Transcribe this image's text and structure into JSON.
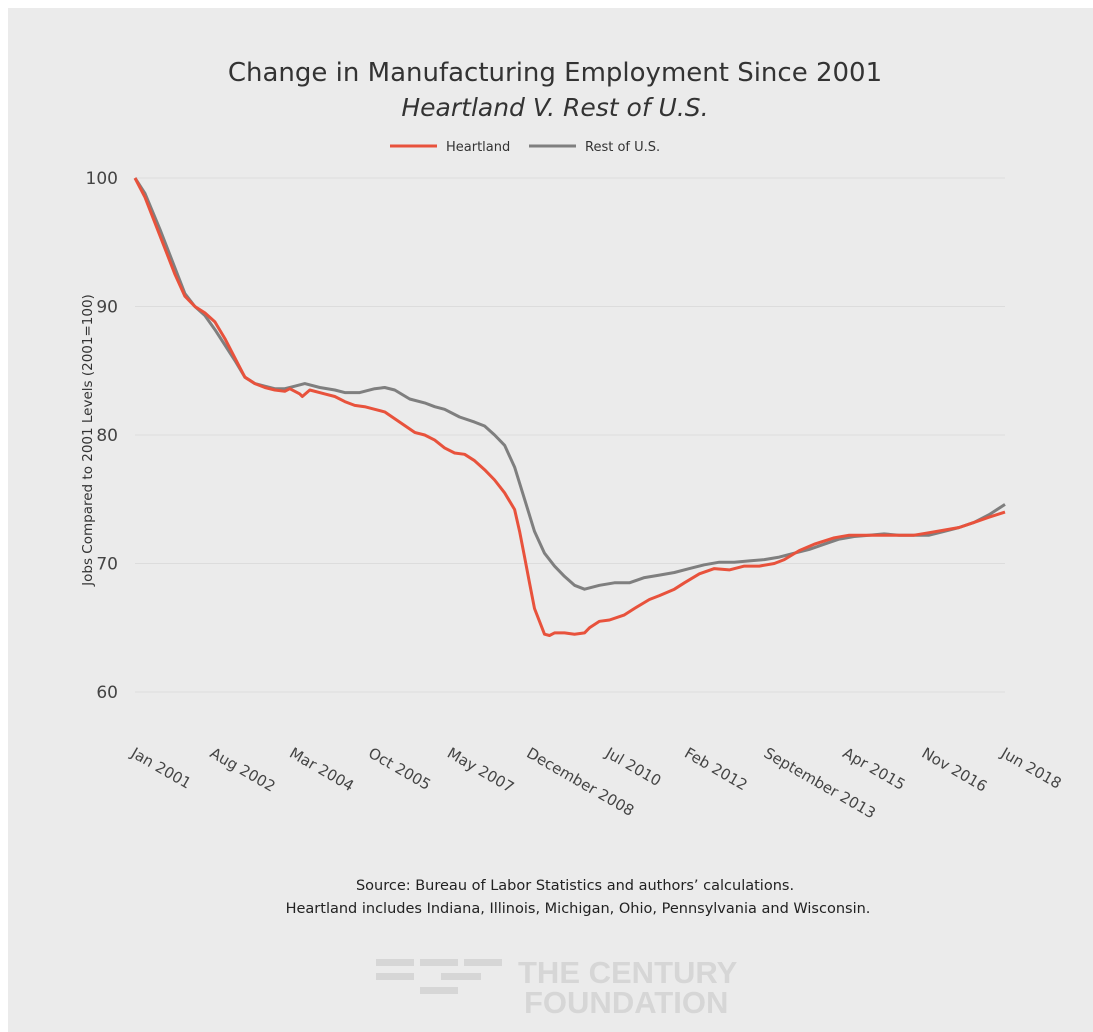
{
  "chart_data": {
    "type": "line",
    "title": "Change in Manufacturing Employment Since 2001",
    "subtitle": "Heartland V. Rest of U.S.",
    "ylabel": "Jobs Compared to 2001 Levels (2001=100)",
    "xlabel": "",
    "ylim": [
      55,
      101
    ],
    "yticks": [
      60,
      70,
      80,
      90,
      100
    ],
    "xlim": [
      2001.0,
      2018.42
    ],
    "xtick_labels": [
      "Jan 2001",
      "Aug 2002",
      "Mar 2004",
      "Oct 2005",
      "May 2007",
      "December 2008",
      "Jul 2010",
      "Feb 2012",
      "September 2013",
      "Apr 2015",
      "Nov 2016",
      "Jun 2018"
    ],
    "xtick_values": [
      2001.0,
      2002.58,
      2004.17,
      2005.75,
      2007.33,
      2008.92,
      2010.5,
      2012.08,
      2013.67,
      2015.25,
      2016.83,
      2018.42
    ],
    "legend_position": "top-center",
    "grid": true,
    "series": [
      {
        "name": "Heartland",
        "color": "#e8523c",
        "x": [
          2001.0,
          2001.2,
          2001.5,
          2001.8,
          2002.0,
          2002.2,
          2002.4,
          2002.6,
          2002.8,
          2003.0,
          2003.2,
          2003.4,
          2003.6,
          2003.8,
          2004.0,
          2004.1,
          2004.3,
          2004.35,
          2004.5,
          2004.8,
          2005.0,
          2005.2,
          2005.4,
          2005.6,
          2005.8,
          2006.0,
          2006.3,
          2006.6,
          2006.8,
          2007.0,
          2007.2,
          2007.4,
          2007.6,
          2007.8,
          2008.0,
          2008.2,
          2008.4,
          2008.6,
          2008.7,
          2008.8,
          2008.9,
          2009.0,
          2009.2,
          2009.3,
          2009.4,
          2009.6,
          2009.8,
          2010.0,
          2010.1,
          2010.3,
          2010.5,
          2010.8,
          2011.0,
          2011.3,
          2011.5,
          2011.8,
          2012.0,
          2012.3,
          2012.6,
          2012.9,
          2013.2,
          2013.5,
          2013.8,
          2014.0,
          2014.3,
          2014.6,
          2015.0,
          2015.3,
          2015.6,
          2016.0,
          2016.3,
          2016.6,
          2016.9,
          2017.2,
          2017.5,
          2017.8,
          2018.1,
          2018.42
        ],
        "values": [
          100.0,
          98.5,
          95.5,
          92.5,
          90.8,
          90.0,
          89.5,
          88.8,
          87.5,
          86.0,
          84.5,
          84.0,
          83.7,
          83.5,
          83.4,
          83.6,
          83.2,
          83.0,
          83.5,
          83.2,
          83.0,
          82.6,
          82.3,
          82.2,
          82.0,
          81.8,
          81.0,
          80.2,
          80.0,
          79.6,
          79.0,
          78.6,
          78.5,
          78.0,
          77.3,
          76.5,
          75.5,
          74.2,
          72.5,
          70.5,
          68.5,
          66.5,
          64.5,
          64.4,
          64.6,
          64.6,
          64.5,
          64.6,
          65.0,
          65.5,
          65.6,
          66.0,
          66.5,
          67.2,
          67.5,
          68.0,
          68.5,
          69.2,
          69.6,
          69.5,
          69.8,
          69.8,
          70.0,
          70.3,
          71.0,
          71.5,
          72.0,
          72.2,
          72.2,
          72.2,
          72.2,
          72.2,
          72.4,
          72.6,
          72.8,
          73.2,
          73.6,
          74.0
        ]
      },
      {
        "name": "Rest of U.S.",
        "color": "#7f7f7f",
        "x": [
          2001.0,
          2001.2,
          2001.5,
          2001.8,
          2002.0,
          2002.2,
          2002.4,
          2002.6,
          2002.8,
          2003.0,
          2003.2,
          2003.4,
          2003.6,
          2003.8,
          2004.0,
          2004.2,
          2004.4,
          2004.7,
          2005.0,
          2005.2,
          2005.5,
          2005.8,
          2006.0,
          2006.2,
          2006.5,
          2006.8,
          2007.0,
          2007.2,
          2007.5,
          2007.8,
          2008.0,
          2008.2,
          2008.4,
          2008.6,
          2008.8,
          2009.0,
          2009.2,
          2009.4,
          2009.6,
          2009.8,
          2010.0,
          2010.3,
          2010.6,
          2010.9,
          2011.2,
          2011.5,
          2011.8,
          2012.1,
          2012.4,
          2012.7,
          2013.0,
          2013.3,
          2013.6,
          2013.9,
          2014.2,
          2014.5,
          2014.8,
          2015.1,
          2015.4,
          2015.7,
          2016.0,
          2016.3,
          2016.6,
          2016.9,
          2017.2,
          2017.5,
          2017.8,
          2018.1,
          2018.42
        ],
        "values": [
          100.0,
          98.8,
          96.0,
          93.0,
          91.0,
          90.0,
          89.3,
          88.2,
          87.0,
          85.8,
          84.5,
          84.0,
          83.8,
          83.6,
          83.6,
          83.8,
          84.0,
          83.7,
          83.5,
          83.3,
          83.3,
          83.6,
          83.7,
          83.5,
          82.8,
          82.5,
          82.2,
          82.0,
          81.4,
          81.0,
          80.7,
          80.0,
          79.2,
          77.5,
          75.0,
          72.5,
          70.8,
          69.8,
          69.0,
          68.3,
          68.0,
          68.3,
          68.5,
          68.5,
          68.9,
          69.1,
          69.3,
          69.6,
          69.9,
          70.1,
          70.1,
          70.2,
          70.3,
          70.5,
          70.8,
          71.1,
          71.5,
          71.9,
          72.1,
          72.2,
          72.3,
          72.2,
          72.2,
          72.2,
          72.5,
          72.8,
          73.2,
          73.8,
          74.6
        ]
      }
    ]
  },
  "footer": {
    "source_line1": "Source: Bureau of Labor Statistics and authors’ calculations.",
    "source_line2": "Heartland includes Indiana, Illinois, Michigan, Ohio, Pennsylvania and Wisconsin.",
    "logo_line1": "THE CENTURY",
    "logo_line2": "FOUNDATION"
  }
}
